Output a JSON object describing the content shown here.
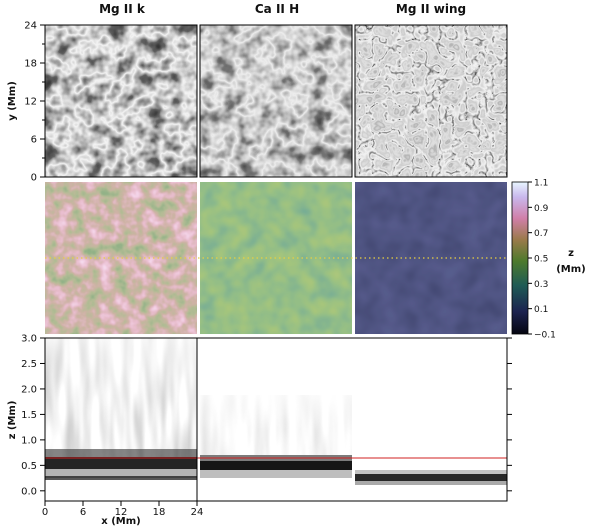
{
  "columns": [
    "Mg II k",
    "Ca II H",
    "Mg II wing"
  ],
  "colorbar": {
    "label_line1": "z",
    "label_line2": "(Mm)",
    "ticks": [
      "1.1",
      "0.9",
      "0.7",
      "0.5",
      "0.3",
      "0.1",
      "−0.1"
    ]
  },
  "chart_data": [
    {
      "type": "heatmap",
      "panel": "intensity images",
      "columns": [
        "Mg II k",
        "Ca II H",
        "Mg II wing"
      ],
      "xlabel": "",
      "ylabel": "y (Mm)",
      "xlim": [
        0,
        24
      ],
      "ylim": [
        0,
        24
      ],
      "yticks": [
        "0",
        "6",
        "12",
        "18",
        "24"
      ]
    },
    {
      "type": "heatmap",
      "panel": "formation height maps",
      "columns": [
        "Mg II k",
        "Ca II H",
        "Mg II wing"
      ],
      "zlabel": "z (Mm)",
      "zlim": [
        -0.1,
        1.1
      ],
      "mean_height_mm": [
        0.5,
        0.3,
        -0.05
      ],
      "dotted_cut_y_mm": 12
    },
    {
      "type": "heatmap",
      "panel": "vertical cuts (contribution function)",
      "columns": [
        "Mg II k",
        "Ca II H",
        "Mg II wing"
      ],
      "xlabel": "x (Mm)",
      "ylabel": "z (Mm)",
      "xlim": [
        0,
        24
      ],
      "ylim": [
        -0.2,
        3.0
      ],
      "xticks": [
        "0",
        "6",
        "12",
        "18",
        "24"
      ],
      "yticks": [
        "0.0",
        "0.5",
        "1.0",
        "1.5",
        "2.0",
        "2.5",
        "3.0"
      ],
      "red_line_z_mm": 0.5
    }
  ]
}
